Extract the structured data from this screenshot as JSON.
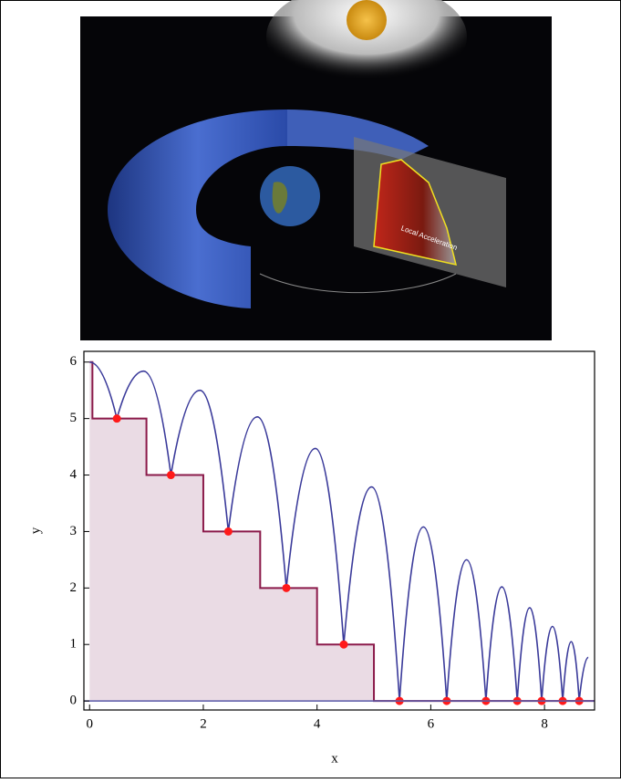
{
  "image": {
    "caption": "Local Acceleration"
  },
  "chart_data": {
    "type": "line",
    "xlabel": "x",
    "ylabel": "y",
    "xlim": [
      -0.1,
      8.88
    ],
    "ylim": [
      -0.16,
      6.19
    ],
    "xticks": [
      0,
      2,
      4,
      6,
      8
    ],
    "yticks": [
      0,
      1,
      2,
      3,
      4,
      5,
      6
    ],
    "series": [
      {
        "style": "step",
        "color": "#8b1a4a",
        "fill": "#eadbe4",
        "x": [
          0,
          0.05,
          1,
          2,
          3,
          4,
          5
        ],
        "values": [
          6,
          5,
          4,
          3,
          2,
          1,
          0
        ]
      },
      {
        "style": "trajectory",
        "color": "#3a3a9a",
        "x": [
          0,
          0.48,
          0.95,
          1.43,
          1.94,
          2.44,
          2.95,
          3.46,
          3.97,
          4.47,
          4.96,
          5.45,
          5.87,
          6.28,
          6.63,
          6.97,
          7.25,
          7.52,
          7.74,
          7.95,
          8.14,
          8.32,
          8.47,
          8.61,
          8.77
        ],
        "values": [
          6,
          5,
          5.84,
          4,
          5.5,
          3,
          5.03,
          2,
          4.47,
          1,
          3.79,
          0,
          3.08,
          0,
          2.5,
          0,
          2.02,
          0,
          1.65,
          0,
          1.32,
          0,
          1.05,
          0,
          0.77
        ]
      },
      {
        "style": "points",
        "color": "#ff1a1a",
        "x": [
          0.48,
          1.43,
          2.44,
          3.46,
          4.47,
          5.45,
          6.28,
          6.97,
          7.52,
          7.95,
          8.32,
          8.61
        ],
        "values": [
          5,
          4,
          3,
          2,
          1,
          0,
          0,
          0,
          0,
          0,
          0,
          0
        ]
      }
    ]
  }
}
